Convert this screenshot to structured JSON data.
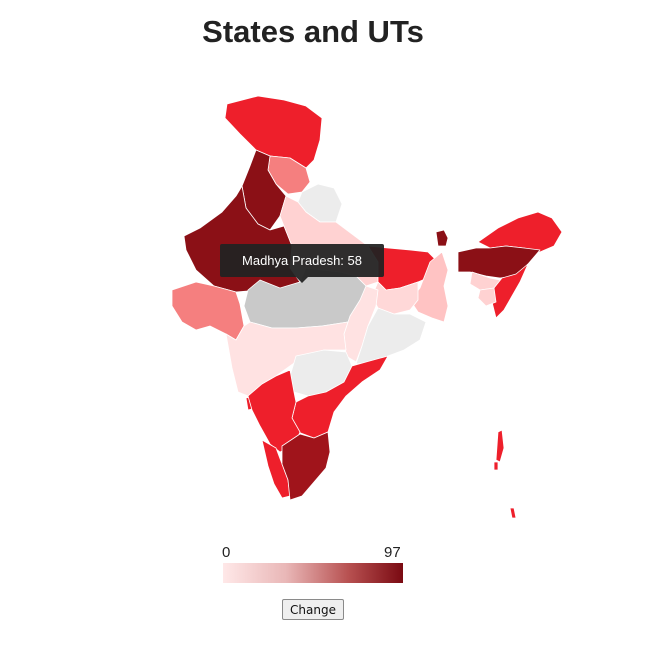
{
  "title": "States and UTs",
  "tooltip": {
    "state": "Madhya Pradesh",
    "value": 58,
    "text": "Madhya Pradesh: 58"
  },
  "legend": {
    "min": "0",
    "max": "97",
    "color_low": "#ffe8e8",
    "color_high": "#7a0a12"
  },
  "button": {
    "label": "Change"
  },
  "colors": {
    "highlight": "#c9c9c9",
    "zero": "#ececec",
    "dark": "#8b1016",
    "bright": "#ee1f2b"
  },
  "regions": [
    {
      "id": "jammu-kashmir",
      "color": "#ee1f2b"
    },
    {
      "id": "himachal-pradesh",
      "color": "#f57f7f"
    },
    {
      "id": "punjab",
      "color": "#8b1016"
    },
    {
      "id": "uttarakhand",
      "color": "#ececec"
    },
    {
      "id": "rajasthan",
      "color": "#8b1016"
    },
    {
      "id": "uttar-pradesh",
      "color": "#ffd2d2"
    },
    {
      "id": "bihar",
      "color": "#ee1f2b"
    },
    {
      "id": "sikkim",
      "color": "#8b1016"
    },
    {
      "id": "assam",
      "color": "#8b1016"
    },
    {
      "id": "arunachal-pradesh",
      "color": "#ee1f2b"
    },
    {
      "id": "meghalaya",
      "color": "#ffd2d2"
    },
    {
      "id": "nagaland-manipur-mizoram",
      "color": "#ee1f2b"
    },
    {
      "id": "tripura",
      "color": "#ffd2d2"
    },
    {
      "id": "west-bengal",
      "color": "#ffc3c3"
    },
    {
      "id": "jharkhand",
      "color": "#ffd8d8"
    },
    {
      "id": "gujarat",
      "color": "#f57f7f"
    },
    {
      "id": "madhya-pradesh",
      "color": "#c9c9c9"
    },
    {
      "id": "chhattisgarh",
      "color": "#ffe2e2"
    },
    {
      "id": "odisha",
      "color": "#ececec"
    },
    {
      "id": "maharashtra",
      "color": "#ffe2e2"
    },
    {
      "id": "telangana",
      "color": "#ececec"
    },
    {
      "id": "andhra-pradesh",
      "color": "#ee1f2b"
    },
    {
      "id": "karnataka",
      "color": "#ee1f2b"
    },
    {
      "id": "goa",
      "color": "#ee1f2b"
    },
    {
      "id": "kerala",
      "color": "#ee1f2b"
    },
    {
      "id": "tamil-nadu",
      "color": "#a0141b"
    },
    {
      "id": "andaman-nicobar",
      "color": "#ee1f2b"
    }
  ]
}
